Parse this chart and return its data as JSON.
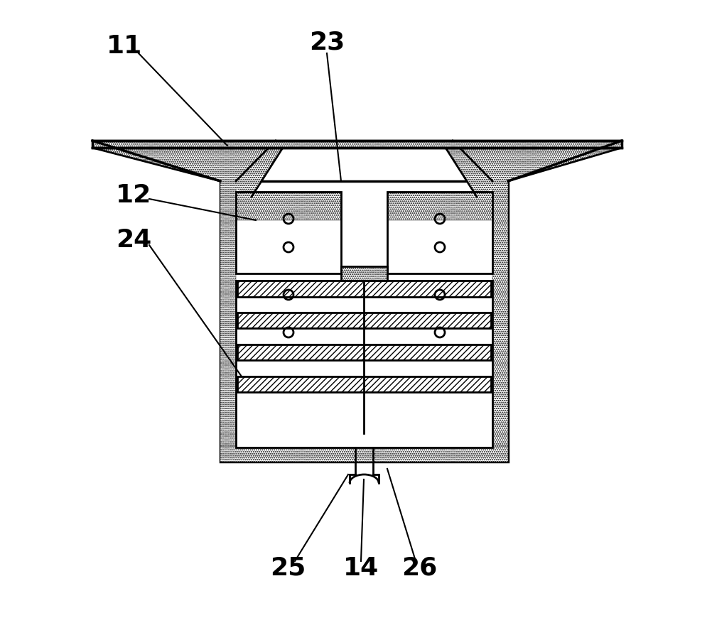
{
  "bg_color": "#ffffff",
  "line_color": "#000000",
  "label_fontsize": 26,
  "label_fontweight": "bold",
  "lw": 2.0,
  "lw_thick": 2.5
}
